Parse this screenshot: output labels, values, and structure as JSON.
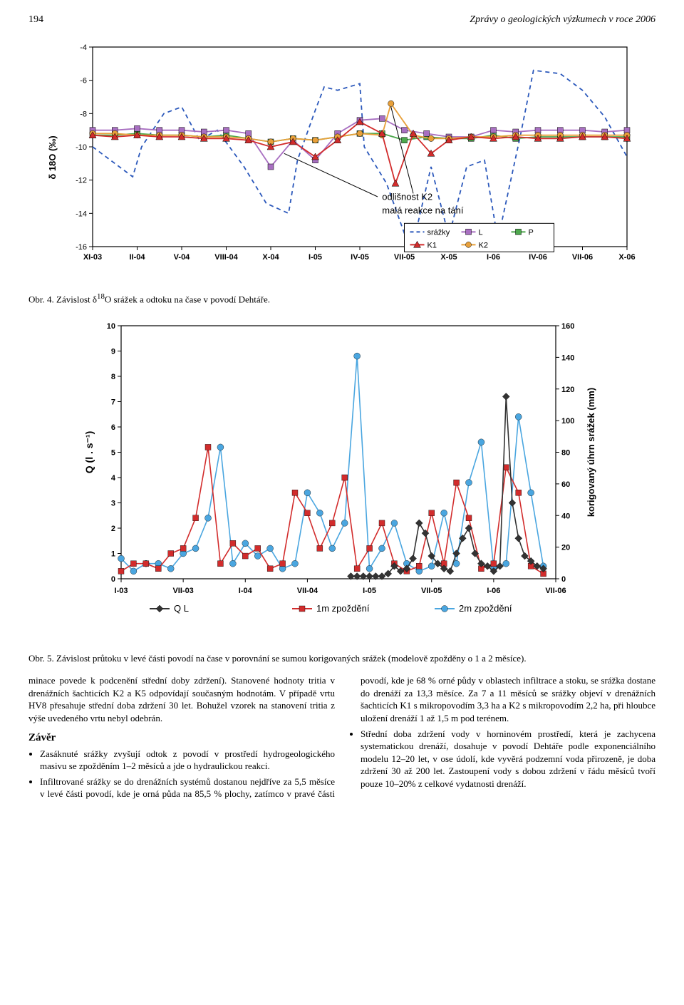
{
  "header": {
    "page_number": "194",
    "journal_title": "Zprávy o geologických výzkumech v roce 2006"
  },
  "figure4": {
    "type": "line",
    "caption": "Obr. 4. Závislost δ18O srážek a odtoku na čase v povodí Dehtáře.",
    "caption_prefix": "Obr. 4. Závislost δ",
    "caption_sup": "18",
    "caption_suffix": "O srážek a odtoku na čase v povodí Dehtáře.",
    "ylabel": "δ 18O (‰)",
    "ylim": [
      -16,
      -4
    ],
    "ytick_step": 2,
    "yticks": [
      -4,
      -6,
      -8,
      -10,
      -12,
      -14,
      -16
    ],
    "xticks": [
      "XI-03",
      "II-04",
      "V-04",
      "VIII-04",
      "X-04",
      "I-05",
      "IV-05",
      "VII-05",
      "X-05",
      "I-06",
      "IV-06",
      "VII-06",
      "X-06"
    ],
    "annotation1": "odlišnost K2",
    "annotation2": "malá reakce na tání",
    "legend": [
      {
        "name": "srážky",
        "color": "#2b58bb",
        "dash": true,
        "marker": "none"
      },
      {
        "name": "K1",
        "color": "#d22c2c",
        "dash": false,
        "marker": "triangle"
      },
      {
        "name": "L",
        "color": "#a86fc1",
        "dash": false,
        "marker": "square"
      },
      {
        "name": "K2",
        "color": "#e8a03a",
        "dash": false,
        "marker": "circle"
      },
      {
        "name": "P",
        "color": "#4ea84e",
        "dash": false,
        "marker": "square"
      }
    ],
    "background_color": "#ffffff",
    "grid_color": "#000000",
    "title_fontsize": 12,
    "label_fontsize": 11,
    "srazky_x": [
      0,
      0.6,
      0.9,
      1.1,
      1.6,
      2.0,
      2.4,
      2.8,
      3.4,
      3.9,
      4.4,
      4.6,
      5.0,
      5.2,
      5.5,
      6.0,
      6.1,
      6.6,
      7.0,
      7.2,
      7.6,
      8.0,
      8.4,
      8.8,
      9.1,
      9.6,
      9.9,
      10.5,
      11.0,
      11.5,
      12.0
    ],
    "srazky_y": [
      -10.0,
      -11.2,
      -11.8,
      -10.0,
      -8.0,
      -7.6,
      -9.6,
      -9.0,
      -11.2,
      -13.4,
      -14.0,
      -10.8,
      -7.8,
      -6.4,
      -6.6,
      -6.2,
      -10.0,
      -12.2,
      -15.2,
      -15.8,
      -11.2,
      -15.4,
      -11.2,
      -10.8,
      -15.6,
      -9.4,
      -5.4,
      -5.6,
      -6.6,
      -8.2,
      -10.6
    ],
    "k1_x": [
      0,
      0.5,
      1.0,
      1.5,
      2.0,
      2.5,
      3.0,
      3.5,
      4.0,
      4.5,
      5.0,
      5.5,
      6.0,
      6.5,
      6.8,
      7.2,
      7.6,
      8.0,
      8.5,
      9.0,
      9.5,
      10.0,
      10.5,
      11.0,
      11.5,
      12.0
    ],
    "k1_y": [
      -9.3,
      -9.4,
      -9.3,
      -9.4,
      -9.4,
      -9.5,
      -9.5,
      -9.6,
      -10.0,
      -9.7,
      -10.6,
      -9.6,
      -8.5,
      -9.2,
      -12.2,
      -9.2,
      -10.4,
      -9.6,
      -9.4,
      -9.5,
      -9.4,
      -9.5,
      -9.5,
      -9.4,
      -9.4,
      -9.5
    ],
    "l_x": [
      0,
      0.5,
      1.0,
      1.5,
      2.0,
      2.5,
      3.0,
      3.5,
      4.0,
      4.5,
      5.0,
      5.5,
      6.0,
      6.5,
      7.0,
      7.5,
      8.0,
      8.5,
      9.0,
      9.5,
      10.0,
      10.5,
      11.0,
      11.5,
      12.0
    ],
    "l_y": [
      -9.0,
      -9.0,
      -8.9,
      -9.0,
      -9.0,
      -9.1,
      -9.0,
      -9.2,
      -11.2,
      -9.6,
      -10.8,
      -9.2,
      -8.4,
      -8.3,
      -9.0,
      -9.2,
      -9.4,
      -9.4,
      -9.0,
      -9.1,
      -9.0,
      -9.0,
      -9.0,
      -9.1,
      -9.0
    ],
    "k2_x": [
      0,
      0.5,
      1.0,
      1.5,
      2.0,
      2.5,
      3.0,
      3.5,
      4.0,
      4.5,
      5.0,
      5.5,
      6.0,
      6.5,
      6.7,
      7.2,
      7.6,
      8.0,
      8.5,
      9.0,
      9.5,
      10.0,
      10.5,
      11.0,
      11.5,
      12.0
    ],
    "k2_y": [
      -9.2,
      -9.2,
      -9.3,
      -9.3,
      -9.3,
      -9.4,
      -9.4,
      -9.5,
      -9.7,
      -9.5,
      -9.6,
      -9.4,
      -9.2,
      -9.3,
      -7.4,
      -9.3,
      -9.5,
      -9.5,
      -9.4,
      -9.4,
      -9.3,
      -9.3,
      -9.3,
      -9.3,
      -9.3,
      -9.3
    ],
    "p_x": [
      0,
      0.5,
      1.0,
      1.5,
      2.0,
      2.5,
      3.0,
      3.5,
      4.0,
      4.5,
      5.0,
      5.5,
      6.0,
      6.5,
      7.0,
      7.5,
      8.0,
      8.5,
      9.0,
      9.5,
      10.0,
      10.5,
      11.0,
      11.5,
      12.0
    ],
    "p_y": [
      -9.3,
      -9.3,
      -9.2,
      -9.3,
      -9.3,
      -9.4,
      -9.3,
      -9.5,
      -9.7,
      -9.5,
      -9.6,
      -9.4,
      -9.2,
      -9.2,
      -9.6,
      -9.4,
      -9.5,
      -9.5,
      -9.3,
      -9.5,
      -9.4,
      -9.4,
      -9.4,
      -9.4,
      -9.4
    ]
  },
  "figure5": {
    "type": "line",
    "caption": "Obr. 5. Závislost průtoku v levé části povodí na čase v porovnání se sumou korigovaných srážek (modelově zpožděny o 1 a 2 měsíce).",
    "ylabel": "Q (l . s⁻¹)",
    "ylabel2": "korigovaný úhrn srážek (mm)",
    "ylim": [
      0,
      10
    ],
    "ytick_step": 1,
    "yticks": [
      0,
      1,
      2,
      3,
      4,
      5,
      6,
      7,
      8,
      9,
      10
    ],
    "y2lim": [
      0,
      160
    ],
    "y2ticks": [
      0,
      20,
      40,
      60,
      80,
      100,
      120,
      140,
      160
    ],
    "xticks": [
      "I-03",
      "VII-03",
      "I-04",
      "VII-04",
      "I-05",
      "VII-05",
      "I-06",
      "VII-06"
    ],
    "legend": [
      {
        "name": "Q L",
        "color": "#333333",
        "marker": "diamond"
      },
      {
        "name": "1m zpoždění",
        "color": "#d22c2c",
        "marker": "square"
      },
      {
        "name": "2m zpoždění",
        "color": "#4aa6e0",
        "marker": "circle"
      }
    ],
    "background_color": "#ffffff",
    "grid_color": "#000000",
    "label_fontsize": 11,
    "ql_x": [
      18.5,
      19,
      19.5,
      20,
      20.5,
      21,
      21.5,
      22,
      22.5,
      23,
      23.5,
      24,
      24.5,
      25,
      25.5,
      26,
      26.5,
      27,
      27.5,
      28,
      28.5,
      29,
      29.5,
      30,
      30.5,
      31,
      31.5,
      32,
      32.5,
      33,
      33.5,
      34
    ],
    "ql_y": [
      0.1,
      0.1,
      0.1,
      0.1,
      0.1,
      0.1,
      0.2,
      0.5,
      0.3,
      0.4,
      0.8,
      2.2,
      1.8,
      0.9,
      0.6,
      0.4,
      0.3,
      1.0,
      1.6,
      2.0,
      1.0,
      0.6,
      0.5,
      0.3,
      0.5,
      7.2,
      3.0,
      1.6,
      0.9,
      0.7,
      0.5,
      0.4
    ],
    "m1_x": [
      0,
      1,
      2,
      3,
      4,
      5,
      6,
      7,
      8,
      9,
      10,
      11,
      12,
      13,
      14,
      15,
      16,
      17,
      18,
      19,
      20,
      21,
      22,
      23,
      24,
      25,
      26,
      27,
      28,
      29,
      30,
      31,
      32,
      33,
      34
    ],
    "m1_y": [
      0.3,
      0.6,
      0.6,
      0.4,
      1.0,
      1.2,
      2.4,
      5.2,
      0.6,
      1.4,
      0.9,
      1.2,
      0.4,
      0.6,
      3.4,
      2.6,
      1.2,
      2.2,
      4.0,
      0.4,
      1.2,
      2.2,
      0.6,
      0.3,
      0.5,
      2.6,
      0.6,
      3.8,
      2.4,
      0.4,
      0.6,
      4.4,
      3.4,
      0.5,
      0.2
    ],
    "m2_x": [
      0,
      1,
      2,
      3,
      4,
      5,
      6,
      7,
      8,
      9,
      10,
      11,
      12,
      13,
      14,
      15,
      16,
      17,
      18,
      19,
      20,
      21,
      22,
      23,
      24,
      25,
      26,
      27,
      28,
      29,
      30,
      31,
      32,
      33,
      34
    ],
    "m2_y": [
      0.8,
      0.3,
      0.6,
      0.6,
      0.4,
      1.0,
      1.2,
      2.4,
      5.2,
      0.6,
      1.4,
      0.9,
      1.2,
      0.4,
      0.6,
      3.4,
      2.6,
      1.2,
      2.2,
      8.8,
      0.4,
      1.2,
      2.2,
      0.6,
      0.3,
      0.5,
      2.6,
      0.6,
      3.8,
      5.4,
      0.4,
      0.6,
      6.4,
      3.4,
      0.5
    ]
  },
  "body": {
    "para1_col1": "minace povede k podcenění střední doby zdržení). Stanovené hodnoty tritia v drenážních šachticích K2 a K5 odpovídají současným hodnotám. V případě vrtu HV8 přesahuje střední doba zdržení 30 let. Bohužel vzorek na stanovení tritia z výše uvedeného vrtu nebyl odebrán.",
    "zaver_title": "Závěr",
    "bullet1": "Zasáknuté srážky zvyšují odtok z povodí v prostředí hydrogeologického masivu se zpožděním 1–2 měsíců a jde o hydraulickou reakci.",
    "bullet2_start": "Infiltrované srážky se do drenážních systémů dostanou",
    "bullet2_cont_col2": "nejdříve za 5,5 měsíce v levé části povodí, kde je orná půda na 85,5 % plochy, zatímco v pravé části povodí, kde je 68 % orné půdy v oblastech infiltrace a stoku, se srážka dostane do drenáží za 13,3 měsíce. Za 7 a 11 měsíců se srážky objeví v drenážních šachticích K1 s mikropovodím 3,3 ha a K2 s mikropovodím 2,2 ha, při hloubce uložení drenáží 1 až 1,5 m pod terénem.",
    "bullet3": "Střední doba zdržení vody v horninovém prostředí, která je zachycena systematickou drenáží, dosahuje v povodí Dehtáře podle exponenciálního modelu 12–20 let, v ose údolí, kde vyvěrá podzemní voda přirozeně, je doba zdržení 30 až 200 let. Zastoupení vody s dobou zdržení v řádu měsíců tvoří pouze 10–20% z celkové vydatnosti drenáží."
  }
}
